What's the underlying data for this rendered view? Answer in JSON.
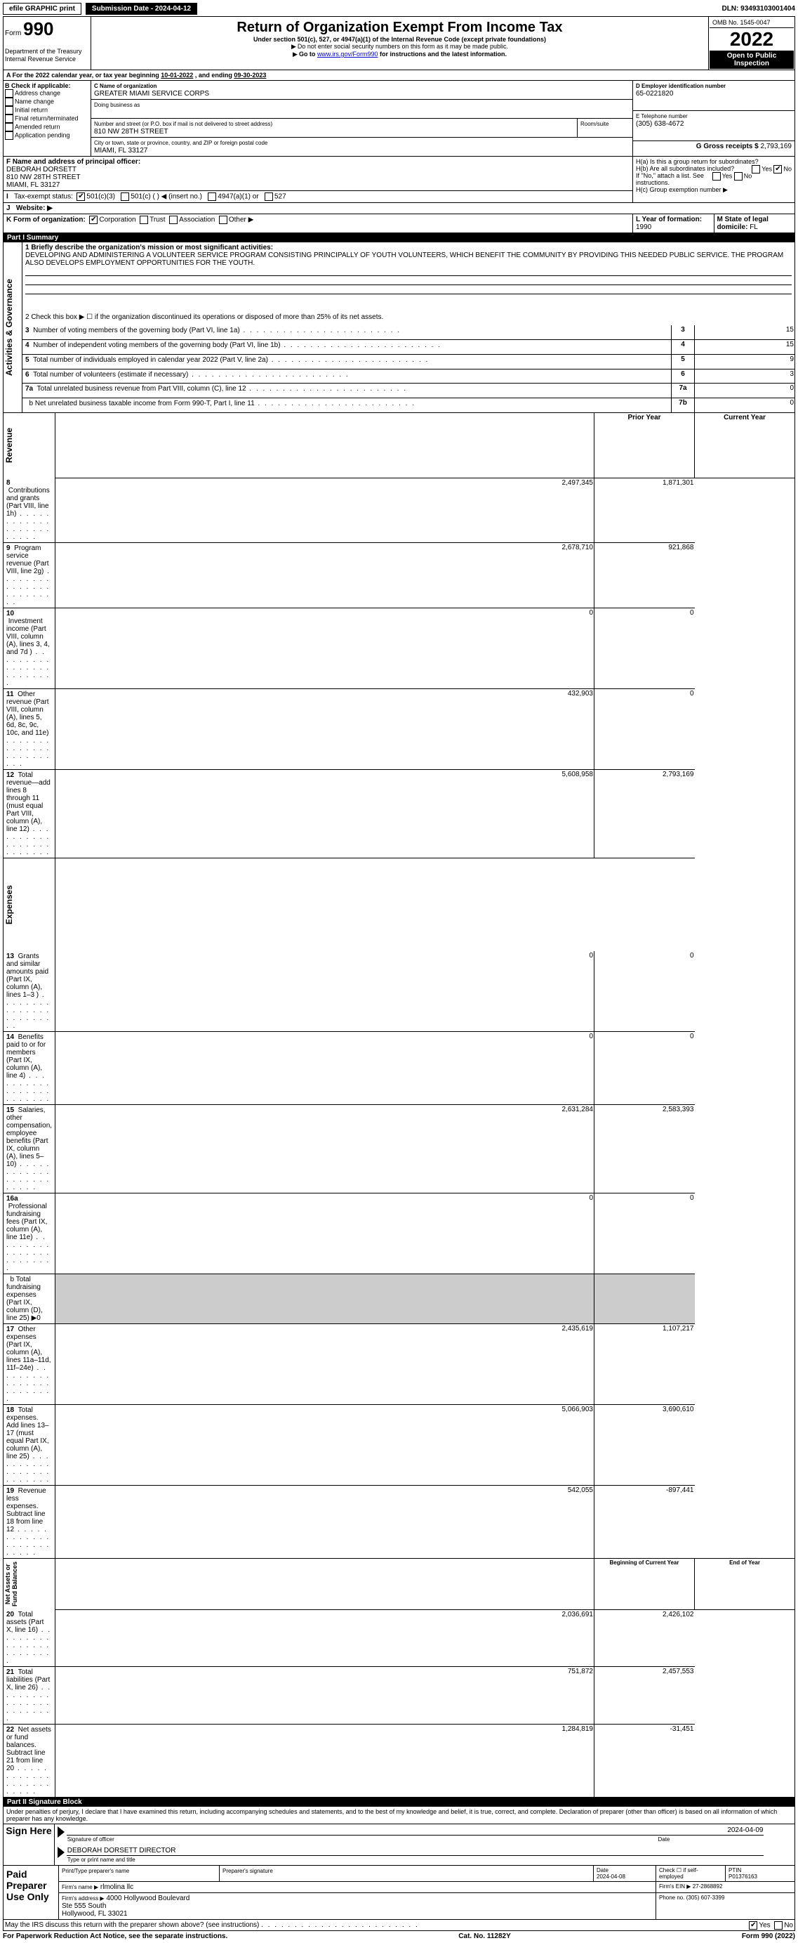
{
  "topbar": {
    "efile": "efile GRAPHIC print",
    "sub_label": "Submission Date - 2024-04-12",
    "dln": "DLN: 93493103001404"
  },
  "header": {
    "form_word": "Form",
    "form_no": "990",
    "title": "Return of Organization Exempt From Income Tax",
    "subtitle": "Under section 501(c), 527, or 4947(a)(1) of the Internal Revenue Code (except private foundations)",
    "note1": "Do not enter social security numbers on this form as it may be made public.",
    "note2_pre": "Go to ",
    "note2_link": "www.irs.gov/Form990",
    "note2_post": " for instructions and the latest information.",
    "dept": "Department of the Treasury",
    "irs": "Internal Revenue Service",
    "omb": "OMB No. 1545-0047",
    "year": "2022",
    "open": "Open to Public Inspection"
  },
  "periodA": {
    "text_pre": "For the 2022 calendar year, or tax year beginning ",
    "begin": "10-01-2022",
    "mid": " , and ending ",
    "end": "09-30-2023"
  },
  "boxB": {
    "label": "B Check if applicable:",
    "items": [
      "Address change",
      "Name change",
      "Initial return",
      "Final return/terminated",
      "Amended return",
      "Application pending"
    ]
  },
  "boxC": {
    "label": "C Name of organization",
    "name": "GREATER MIAMI SERVICE CORPS",
    "dba_label": "Doing business as",
    "dba": "",
    "street_label": "Number and street (or P.O. box if mail is not delivered to street address)",
    "room_label": "Room/suite",
    "street": "810 NW 28TH STREET",
    "city_label": "City or town, state or province, country, and ZIP or foreign postal code",
    "city": "MIAMI, FL  33127"
  },
  "boxD": {
    "label": "D Employer identification number",
    "value": "65-0221820"
  },
  "boxE": {
    "label": "E Telephone number",
    "value": "(305) 638-4672"
  },
  "boxG": {
    "label": "G Gross receipts $",
    "value": "2,793,169"
  },
  "boxF": {
    "label": "F  Name and address of principal officer:",
    "line1": "DEBORAH DORSETT",
    "line2": "810 NW 28TH STREET",
    "line3": "MIAMI, FL  33127"
  },
  "boxH": {
    "a_label": "H(a)  Is this a group return for subordinates?",
    "a_yes": "Yes",
    "a_no": "No",
    "b_label": "H(b)  Are all subordinates included?",
    "b_note": "If \"No,\" attach a list. See instructions.",
    "c_label": "H(c)  Group exemption number ▶"
  },
  "boxI": {
    "label": "Tax-exempt status:",
    "o1": "501(c)(3)",
    "o2": "501(c) (   ) ◀ (insert no.)",
    "o3": "4947(a)(1) or",
    "o4": "527"
  },
  "boxJ": {
    "label": "Website: ▶",
    "value": ""
  },
  "boxK": {
    "label": "K Form of organization:",
    "o1": "Corporation",
    "o2": "Trust",
    "o3": "Association",
    "o4": "Other ▶"
  },
  "boxL": {
    "label": "L Year of formation:",
    "value": "1990"
  },
  "boxM": {
    "label": "M State of legal domicile:",
    "value": "FL"
  },
  "part1": {
    "hdr": "Part I    Summary",
    "q1_label": "1 Briefly describe the organization's mission or most significant activities:",
    "q1_text": "DEVELOPING AND ADMINISTERING A VOLUNTEER SERVICE PROGRAM CONSISTING PRINCIPALLY OF YOUTH VOLUNTEERS, WHICH BENEFIT THE COMMUNITY BY PROVIDING THIS NEEDED PUBLIC SERVICE. THE PROGRAM ALSO DEVELOPS EMPLOYMENT OPPORTUNITIES FOR THE YOUTH.",
    "q2": "2  Check this box ▶ ☐  if the organization discontinued its operations or disposed of more than 25% of its net assets.",
    "rows_single": [
      {
        "n": "3",
        "label": "Number of voting members of the governing body (Part VI, line 1a)",
        "box": "3",
        "val": "15"
      },
      {
        "n": "4",
        "label": "Number of independent voting members of the governing body (Part VI, line 1b)",
        "box": "4",
        "val": "15"
      },
      {
        "n": "5",
        "label": "Total number of individuals employed in calendar year 2022 (Part V, line 2a)",
        "box": "5",
        "val": "9"
      },
      {
        "n": "6",
        "label": "Total number of volunteers (estimate if necessary)",
        "box": "6",
        "val": "3"
      },
      {
        "n": "7a",
        "label": "Total unrelated business revenue from Part VIII, column (C), line 12",
        "box": "7a",
        "val": "0"
      },
      {
        "n": "",
        "label": " b Net unrelated business taxable income from Form 990-T, Part I, line 11",
        "box": "7b",
        "val": "0"
      }
    ],
    "col_prior": "Prior Year",
    "col_current": "Current Year",
    "revenue": [
      {
        "n": "8",
        "label": "Contributions and grants (Part VIII, line 1h)",
        "p": "2,497,345",
        "c": "1,871,301"
      },
      {
        "n": "9",
        "label": "Program service revenue (Part VIII, line 2g)",
        "p": "2,678,710",
        "c": "921,868"
      },
      {
        "n": "10",
        "label": "Investment income (Part VIII, column (A), lines 3, 4, and 7d )",
        "p": "0",
        "c": "0"
      },
      {
        "n": "11",
        "label": "Other revenue (Part VIII, column (A), lines 5, 6d, 8c, 9c, 10c, and 11e)",
        "p": "432,903",
        "c": "0"
      },
      {
        "n": "12",
        "label": "Total revenue—add lines 8 through 11 (must equal Part VIII, column (A), line 12)",
        "p": "5,608,958",
        "c": "2,793,169"
      }
    ],
    "expenses": [
      {
        "n": "13",
        "label": "Grants and similar amounts paid (Part IX, column (A), lines 1–3 )",
        "p": "0",
        "c": "0"
      },
      {
        "n": "14",
        "label": "Benefits paid to or for members (Part IX, column (A), line 4)",
        "p": "0",
        "c": "0"
      },
      {
        "n": "15",
        "label": "Salaries, other compensation, employee benefits (Part IX, column (A), lines 5–10)",
        "p": "2,631,284",
        "c": "2,583,393"
      },
      {
        "n": "16a",
        "label": "Professional fundraising fees (Part IX, column (A), line 11e)",
        "p": "0",
        "c": "0"
      },
      {
        "n": "",
        "label": " b Total fundraising expenses (Part IX, column (D), line 25) ▶0",
        "p": "",
        "c": ""
      },
      {
        "n": "17",
        "label": "Other expenses (Part IX, column (A), lines 11a–11d, 11f–24e)",
        "p": "2,435,619",
        "c": "1,107,217"
      },
      {
        "n": "18",
        "label": "Total expenses. Add lines 13–17 (must equal Part IX, column (A), line 25)",
        "p": "5,066,903",
        "c": "3,690,610"
      },
      {
        "n": "19",
        "label": "Revenue less expenses. Subtract line 18 from line 12",
        "p": "542,055",
        "c": "-897,441"
      }
    ],
    "col_begin": "Beginning of Current Year",
    "col_end": "End of Year",
    "netassets": [
      {
        "n": "20",
        "label": "Total assets (Part X, line 16)",
        "p": "2,036,691",
        "c": "2,426,102"
      },
      {
        "n": "21",
        "label": "Total liabilities (Part X, line 26)",
        "p": "751,872",
        "c": "2,457,553"
      },
      {
        "n": "22",
        "label": "Net assets or fund balances. Subtract line 21 from line 20",
        "p": "1,284,819",
        "c": "-31,451"
      }
    ],
    "side_gov": "Activities & Governance",
    "side_rev": "Revenue",
    "side_exp": "Expenses",
    "side_net": "Net Assets or Fund Balances"
  },
  "part2": {
    "hdr": "Part II    Signature Block",
    "decl": "Under penalties of perjury, I declare that I have examined this return, including accompanying schedules and statements, and to the best of my knowledge and belief, it is true, correct, and complete. Declaration of preparer (other than officer) is based on all information of which preparer has any knowledge.",
    "sign_here": "Sign Here",
    "sig_officer": "Signature of officer",
    "date_label": "Date",
    "sig_date": "2024-04-09",
    "name_title": "DEBORAH DORSETT DIRECTOR",
    "name_title_label": "Type or print name and title",
    "paid": "Paid Preparer Use Only",
    "prep_name_label": "Print/Type preparer's name",
    "prep_sig_label": "Preparer's signature",
    "prep_date": "2024-04-08",
    "self_emp": "Check ☐ if self-employed",
    "ptin_label": "PTIN",
    "ptin": "P01376163",
    "firm_name_label": "Firm's name    ▶",
    "firm_name": "rlmolina llc",
    "firm_ein_label": "Firm's EIN ▶",
    "firm_ein": "27-2868892",
    "firm_addr_label": "Firm's address ▶",
    "firm_addr": "4000 Hollywood Boulevard\nSte 555 South\nHollywood, FL  33021",
    "phone_label": "Phone no.",
    "phone": "(305) 607-3399",
    "discuss": "May the IRS discuss this return with the preparer shown above? (see instructions)",
    "yes": "Yes",
    "no": "No"
  },
  "footer": {
    "left": "For Paperwork Reduction Act Notice, see the separate instructions.",
    "mid": "Cat. No. 11282Y",
    "right": "Form 990 (2022)"
  }
}
